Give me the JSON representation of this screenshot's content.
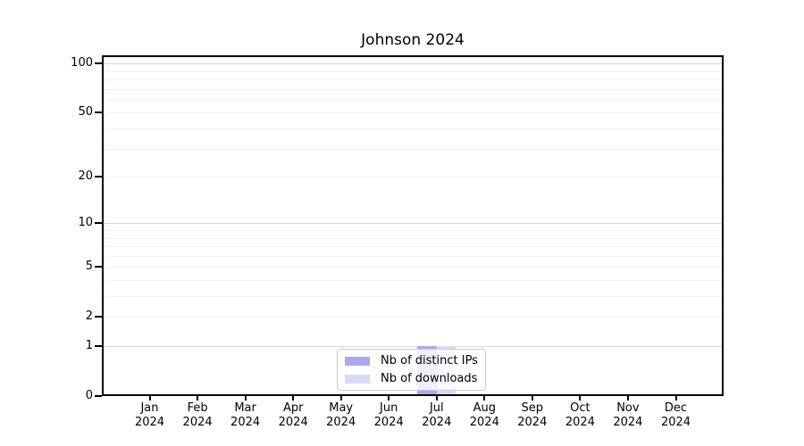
{
  "chart_data": {
    "type": "bar",
    "title": "Johnson 2024",
    "categories": [
      "Jan 2024",
      "Feb 2024",
      "Mar 2024",
      "Apr 2024",
      "May 2024",
      "Jun 2024",
      "Jul 2024",
      "Aug 2024",
      "Sep 2024",
      "Oct 2024",
      "Nov 2024",
      "Dec 2024"
    ],
    "series": [
      {
        "name": "Nb of distinct IPs",
        "color": "#a9aaee",
        "values": [
          0,
          0,
          0,
          0,
          0,
          0,
          1,
          0,
          0,
          0,
          0,
          0
        ]
      },
      {
        "name": "Nb of downloads",
        "color": "#dadaf6",
        "values": [
          0,
          0,
          0,
          0,
          0,
          0,
          1,
          0,
          0,
          0,
          0,
          0
        ]
      }
    ],
    "xlabel": "",
    "ylabel": "",
    "yscale": "log1p",
    "ylim": [
      0,
      112
    ],
    "y_ticks": [
      100,
      50,
      20,
      10,
      5,
      2,
      1,
      0
    ],
    "y_gridlines": {
      "major": [
        1,
        10,
        100
      ],
      "minor": [
        2,
        3,
        4,
        5,
        6,
        7,
        8,
        9,
        20,
        30,
        40,
        50,
        60,
        70,
        80,
        90
      ]
    },
    "grid": true,
    "legend_position": "bottom-center-inside",
    "axis_color": "#000000",
    "background_color": "#ffffff"
  }
}
